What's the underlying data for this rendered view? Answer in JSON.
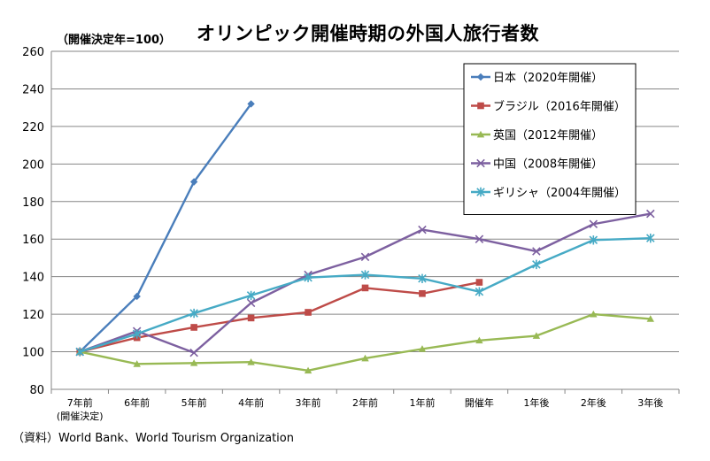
{
  "chart_data": {
    "type": "line",
    "title": "オリンピック開催時期の外国人旅行者数",
    "subtitle": "（開催決定年=100）",
    "source": "（資料）World Bank、World Tourism Organization",
    "ylim": [
      80,
      260
    ],
    "yticks": [
      80,
      100,
      120,
      140,
      160,
      180,
      200,
      220,
      240,
      260
    ],
    "grid": true,
    "legend_position": "top-right",
    "categories": [
      "7年前",
      "6年前",
      "5年前",
      "4年前",
      "3年前",
      "2年前",
      "1年前",
      "開催年",
      "1年後",
      "2年後",
      "3年後"
    ],
    "category_sublabel": "(開催決定)",
    "series": [
      {
        "name": "日本（2020年開催）",
        "color": "#4a7ebb",
        "marker": "diamond",
        "values": [
          100,
          129.5,
          190.5,
          232,
          null,
          null,
          null,
          null,
          null,
          null,
          null
        ]
      },
      {
        "name": "ブラジル（2016年開催）",
        "color": "#be4b48",
        "marker": "square",
        "values": [
          100,
          107.5,
          113,
          118,
          121,
          134,
          131,
          137,
          null,
          null,
          null
        ]
      },
      {
        "name": "英国（2012年開催）",
        "color": "#98b954",
        "marker": "triangle",
        "values": [
          100,
          93.5,
          94,
          94.5,
          90,
          96.5,
          101.5,
          106,
          108.5,
          120,
          117.5
        ]
      },
      {
        "name": "中国（2008年開催）",
        "color": "#7d60a0",
        "marker": "x",
        "values": [
          100,
          111,
          99.5,
          126,
          141,
          150.5,
          165,
          160,
          153.5,
          168,
          173.5
        ]
      },
      {
        "name": "ギリシャ（2004年開催）",
        "color": "#46aac5",
        "marker": "star",
        "values": [
          100,
          109.5,
          120.5,
          130,
          139.5,
          141,
          139,
          132,
          146.5,
          159.5,
          160.5
        ]
      }
    ]
  }
}
